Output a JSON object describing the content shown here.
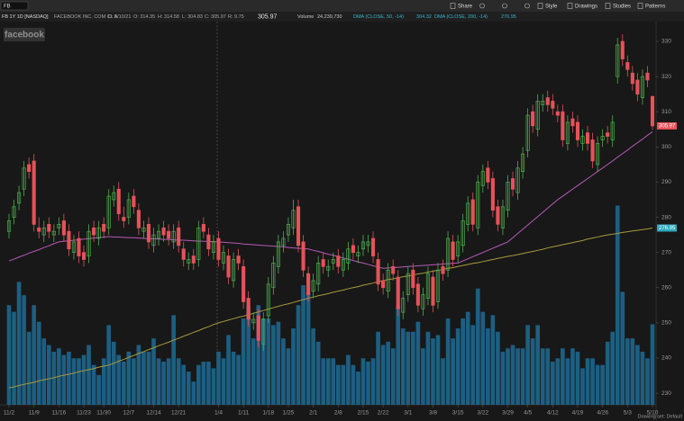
{
  "toolbar": {
    "symbol": "FB",
    "buttons": [
      "Share",
      "Style",
      "Drawings",
      "Studies",
      "Patterns"
    ]
  },
  "header": {
    "symbol_line": "FB 1Y 1D [NASDAQ]",
    "company": "FACEBOOK INC. COM CL A",
    "date": "D: 5/10/21",
    "open": "O: 314.35",
    "high": "H: 314.58",
    "low": "L: 304.83",
    "close": "C: 305.97",
    "range": "R: 9.75",
    "last": "305.97",
    "volume_label": "Volume",
    "volume_value": "24,239,730"
  },
  "watermark": "facebook",
  "footer": "Drawing set: Default",
  "chart_data": {
    "type": "candlestick",
    "up_color": "#4fae4f",
    "down_color": "#e5525a",
    "volume_color": "#1d5f82",
    "ylim": [
      226.7,
      334.6
    ],
    "yticks": [
      230,
      240,
      250,
      260,
      270,
      280,
      290,
      300,
      310,
      320,
      330
    ],
    "volume_lim": [
      0,
      65000000
    ],
    "categories": [
      "11/2",
      null,
      null,
      null,
      null,
      "11/9",
      null,
      null,
      null,
      null,
      "11/16",
      null,
      null,
      null,
      null,
      "11/23",
      null,
      null,
      null,
      "11/30",
      null,
      null,
      null,
      null,
      "12/7",
      null,
      null,
      null,
      null,
      "12/14",
      null,
      null,
      null,
      null,
      "12/21",
      null,
      null,
      null,
      null,
      null,
      null,
      null,
      "1/4",
      null,
      null,
      null,
      null,
      "1/11",
      null,
      null,
      null,
      null,
      "1/18",
      null,
      null,
      null,
      "1/25",
      null,
      null,
      null,
      null,
      "2/1",
      null,
      null,
      null,
      null,
      "2/8",
      null,
      null,
      null,
      null,
      "2/15",
      null,
      null,
      null,
      "2/22",
      null,
      null,
      null,
      null,
      "3/1",
      null,
      null,
      null,
      null,
      "3/8",
      null,
      null,
      null,
      null,
      "3/15",
      null,
      null,
      null,
      null,
      "3/22",
      null,
      null,
      null,
      null,
      "3/29",
      null,
      null,
      null,
      "4/5",
      null,
      null,
      null,
      null,
      "4/12",
      null,
      null,
      null,
      null,
      "4/19",
      null,
      null,
      null,
      null,
      "4/26",
      null,
      null,
      null,
      null,
      "5/3",
      null,
      null,
      null,
      null,
      "5/10"
    ],
    "ohlc": [
      [
        276,
        281,
        274,
        279
      ],
      [
        280,
        285,
        278,
        283
      ],
      [
        284,
        289,
        282,
        287
      ],
      [
        288,
        296,
        286,
        294
      ],
      [
        295,
        297,
        291,
        293
      ],
      [
        296,
        298,
        276,
        278
      ],
      [
        277,
        280,
        274,
        276
      ],
      [
        275,
        279,
        273,
        277
      ],
      [
        278,
        280,
        274,
        276
      ],
      [
        275,
        278,
        273,
        276
      ],
      [
        277,
        280,
        275,
        278
      ],
      [
        279,
        281,
        273,
        275
      ],
      [
        276,
        278,
        269,
        271
      ],
      [
        270,
        275,
        268,
        273
      ],
      [
        274,
        276,
        267,
        269
      ],
      [
        270,
        272,
        266,
        268
      ],
      [
        269,
        278,
        267,
        276
      ],
      [
        277,
        279,
        273,
        275
      ],
      [
        274,
        279,
        272,
        277
      ],
      [
        278,
        280,
        274,
        276
      ],
      [
        277,
        288,
        275,
        286
      ],
      [
        285,
        289,
        283,
        287
      ],
      [
        288,
        290,
        279,
        281
      ],
      [
        280,
        283,
        277,
        279
      ],
      [
        280,
        287,
        278,
        285
      ],
      [
        286,
        288,
        281,
        283
      ],
      [
        282,
        284,
        275,
        277
      ],
      [
        276,
        279,
        274,
        277
      ],
      [
        278,
        280,
        271,
        273
      ],
      [
        272,
        277,
        270,
        275
      ],
      [
        274,
        278,
        272,
        276
      ],
      [
        277,
        279,
        273,
        275
      ],
      [
        276,
        278,
        272,
        274
      ],
      [
        273,
        278,
        271,
        276
      ],
      [
        277,
        279,
        270,
        272
      ],
      [
        271,
        273,
        266,
        268
      ],
      [
        267,
        270,
        265,
        268
      ],
      [
        269,
        271,
        265,
        267
      ],
      [
        268,
        279,
        266,
        277
      ],
      [
        278,
        280,
        274,
        276
      ],
      [
        275,
        277,
        269,
        271
      ],
      [
        270,
        275,
        268,
        273
      ],
      [
        274,
        276,
        266,
        268
      ],
      [
        267,
        272,
        265,
        270
      ],
      [
        269,
        271,
        261,
        263
      ],
      [
        262,
        270,
        260,
        268
      ],
      [
        269,
        271,
        265,
        267
      ],
      [
        266,
        268,
        254,
        256
      ],
      [
        257,
        259,
        249,
        251
      ],
      [
        250,
        253,
        248,
        251
      ],
      [
        252,
        254,
        243,
        245
      ],
      [
        244,
        253,
        242,
        251
      ],
      [
        252,
        263,
        250,
        261
      ],
      [
        260,
        269,
        258,
        267
      ],
      [
        266,
        275,
        264,
        273
      ],
      [
        272,
        276,
        270,
        274
      ],
      [
        275,
        280,
        273,
        278
      ],
      [
        277,
        285,
        275,
        282
      ],
      [
        283,
        285,
        270,
        272
      ],
      [
        273,
        275,
        263,
        265
      ],
      [
        264,
        266,
        256,
        258
      ],
      [
        259,
        264,
        257,
        262
      ],
      [
        261,
        269,
        259,
        267
      ],
      [
        268,
        270,
        264,
        266
      ],
      [
        265,
        268,
        263,
        266
      ],
      [
        267,
        270,
        265,
        268
      ],
      [
        269,
        271,
        264,
        266
      ],
      [
        265,
        270,
        263,
        268
      ],
      [
        267,
        273,
        265,
        271
      ],
      [
        272,
        274,
        268,
        270
      ],
      [
        269,
        272,
        267,
        270
      ],
      [
        271,
        275,
        269,
        273
      ],
      [
        272,
        275,
        270,
        273
      ],
      [
        274,
        276,
        267,
        269
      ],
      [
        268,
        270,
        259,
        261
      ],
      [
        262,
        264,
        258,
        260
      ],
      [
        259,
        267,
        257,
        265
      ],
      [
        266,
        268,
        262,
        264
      ],
      [
        263,
        265,
        252,
        254
      ],
      [
        253,
        259,
        251,
        257
      ],
      [
        258,
        266,
        256,
        264
      ],
      [
        265,
        267,
        258,
        260
      ],
      [
        261,
        263,
        253,
        255
      ],
      [
        254,
        260,
        252,
        258
      ],
      [
        257,
        266,
        255,
        264
      ],
      [
        263,
        265,
        253,
        255
      ],
      [
        256,
        267,
        254,
        265
      ],
      [
        266,
        268,
        262,
        264
      ],
      [
        265,
        276,
        263,
        274
      ],
      [
        273,
        275,
        266,
        268
      ],
      [
        269,
        275,
        267,
        273
      ],
      [
        272,
        281,
        270,
        279
      ],
      [
        278,
        286,
        276,
        284
      ],
      [
        285,
        287,
        276,
        278
      ],
      [
        277,
        292,
        275,
        290
      ],
      [
        289,
        295,
        287,
        293
      ],
      [
        294,
        296,
        288,
        290
      ],
      [
        291,
        293,
        280,
        282
      ],
      [
        283,
        285,
        276,
        278
      ],
      [
        277,
        285,
        275,
        283
      ],
      [
        282,
        292,
        280,
        290
      ],
      [
        291,
        293,
        286,
        288
      ],
      [
        287,
        296,
        285,
        294
      ],
      [
        293,
        300,
        291,
        298
      ],
      [
        299,
        311,
        297,
        309
      ],
      [
        310,
        312,
        304,
        306
      ],
      [
        305,
        315,
        303,
        313
      ],
      [
        312,
        315,
        310,
        313
      ],
      [
        314,
        316,
        310,
        312
      ],
      [
        313,
        315,
        309,
        311
      ],
      [
        310,
        312,
        307,
        309
      ],
      [
        310,
        312,
        300,
        302
      ],
      [
        301,
        309,
        299,
        307
      ],
      [
        308,
        310,
        304,
        306
      ],
      [
        307,
        309,
        300,
        302
      ],
      [
        301,
        305,
        299,
        303
      ],
      [
        304,
        306,
        299,
        301
      ],
      [
        302,
        304,
        294,
        296
      ],
      [
        295,
        303,
        293,
        301
      ],
      [
        302,
        305,
        300,
        303
      ],
      [
        304,
        306,
        301,
        303
      ],
      [
        302,
        309,
        300,
        307
      ],
      [
        320,
        331,
        318,
        329
      ],
      [
        330,
        332,
        323,
        325
      ],
      [
        324,
        326,
        320,
        322
      ],
      [
        321,
        323,
        316,
        318
      ],
      [
        319,
        321,
        313,
        315
      ],
      [
        314,
        322,
        312,
        320
      ],
      [
        321,
        323,
        317,
        319
      ],
      [
        314.35,
        314.58,
        304.83,
        305.97
      ]
    ],
    "volume": [
      30000000.0,
      28000000.0,
      37000000.0,
      33000000.0,
      22000000.0,
      30000000.0,
      25000000.0,
      20000000.0,
      18000000.0,
      16000000.0,
      17000000.0,
      15000000.0,
      16000000.0,
      14000000.0,
      14000000.0,
      15000000.0,
      18000000.0,
      12000000.0,
      9000000.0,
      14000000.0,
      24000000.0,
      19000000.0,
      15000000.0,
      13000000.0,
      16000000.0,
      14000000.0,
      18000000.0,
      16000000.0,
      16000000.0,
      20000000.0,
      14000000.0,
      13000000.0,
      14000000.0,
      27000000.0,
      14000000.0,
      12000000.0,
      10000000.0,
      7000000.0,
      12000000.0,
      13000000.0,
      13000000.0,
      11000000.0,
      16000000.0,
      14000000.0,
      21000000.0,
      16000000.0,
      15000000.0,
      26000000.0,
      30000000.0,
      20000000.0,
      30000000.0,
      26000000.0,
      26000000.0,
      24000000.0,
      25000000.0,
      20000000.0,
      17000000.0,
      23000000.0,
      30000000.0,
      36000000.0,
      34000000.0,
      23000000.0,
      19000000.0,
      14000000.0,
      14000000.0,
      14000000.0,
      12000000.0,
      12000000.0,
      15000000.0,
      12000000.0,
      10000000.0,
      14000000.0,
      13000000.0,
      14000000.0,
      22000000.0,
      18000000.0,
      19000000.0,
      17000000.0,
      30000000.0,
      23000000.0,
      22000000.0,
      22000000.0,
      25000000.0,
      17000000.0,
      22000000.0,
      20000000.0,
      21000000.0,
      14000000.0,
      26000000.0,
      20000000.0,
      23000000.0,
      26000000.0,
      28000000.0,
      24000000.0,
      35000000.0,
      28000000.0,
      23000000.0,
      27000000.0,
      22000000.0,
      16000000.0,
      17000000.0,
      18000000.0,
      17000000.0,
      17000000.0,
      24000000.0,
      20000000.0,
      24000000.0,
      17000000.0,
      17000000.0,
      13000000.0,
      14000000.0,
      17000000.0,
      14000000.0,
      17000000.0,
      16000000.0,
      11000000.0,
      14000000.0,
      14000000.0,
      12000000.0,
      12000000.0,
      19000000.0,
      22000000.0,
      60000000.0,
      34000000.0,
      20000000.0,
      20000000.0,
      18000000.0,
      16000000.0,
      14000000.0,
      24239730
    ],
    "studies": [
      {
        "name": "DMA (CLOSE, 50, -14)",
        "last_label": "304.32",
        "color": "#b55ab8",
        "values": [
          267.6,
          268.1,
          268.7,
          269.2,
          269.8,
          270.3,
          270.8,
          271.4,
          271.9,
          272.5,
          273.0,
          273.2,
          273.3,
          273.5,
          273.6,
          273.8,
          273.9,
          274.1,
          274.2,
          274.4,
          274.5,
          274.4,
          274.4,
          274.3,
          274.2,
          274.2,
          274.1,
          274.0,
          273.9,
          273.9,
          273.8,
          273.7,
          273.7,
          273.6,
          273.5,
          273.5,
          273.4,
          273.3,
          273.2,
          273.2,
          273.1,
          273.1,
          273.0,
          272.9,
          272.8,
          272.7,
          272.6,
          272.4,
          272.3,
          272.2,
          272.1,
          272.0,
          271.9,
          271.8,
          271.7,
          271.6,
          271.4,
          271.3,
          271.2,
          271.1,
          271.0,
          270.6,
          270.3,
          269.9,
          269.5,
          269.2,
          268.8,
          268.4,
          268.1,
          267.7,
          267.3,
          267.0,
          266.6,
          266.2,
          265.9,
          265.5,
          265.6,
          265.7,
          265.8,
          265.9,
          266.0,
          266.1,
          266.2,
          266.3,
          266.4,
          266.5,
          266.6,
          266.7,
          266.8,
          266.9,
          267.0,
          267.6,
          268.2,
          268.8,
          269.4,
          270.0,
          270.6,
          271.2,
          271.8,
          272.4,
          273.0,
          274.2,
          275.4,
          276.6,
          277.8,
          279.0,
          280.2,
          281.4,
          282.6,
          283.8,
          285.0,
          286,
          287,
          288,
          289,
          290,
          291,
          292,
          293,
          294,
          295,
          296.0,
          297.1,
          298.1,
          299.1,
          300.2,
          301.2,
          302.2,
          303.3,
          304.32
        ]
      },
      {
        "name": "DMA (CLOSE, 200, -14)",
        "last_label": "276.95",
        "color": "#a69a3e",
        "values": [
          231.5,
          231.8,
          232.2,
          232.5,
          232.8,
          233.1,
          233.5,
          233.8,
          234.1,
          234.4,
          234.8,
          235.1,
          235.4,
          235.7,
          236.1,
          236.4,
          236.7,
          237.0,
          237.4,
          237.7,
          238.0,
          238.5,
          239.1,
          239.6,
          240.2,
          240.7,
          241.3,
          241.8,
          242.4,
          242.9,
          243.5,
          244.0,
          244.5,
          245.1,
          245.6,
          246.2,
          246.7,
          247.3,
          247.8,
          248.4,
          248.9,
          249.5,
          250.0,
          250.4,
          250.8,
          251.2,
          251.6,
          251.9,
          252.3,
          252.7,
          253.1,
          253.5,
          253.9,
          254.3,
          254.7,
          255.1,
          255.4,
          255.8,
          256.2,
          256.6,
          257.0,
          257.3,
          257.7,
          258.0,
          258.3,
          258.7,
          259.0,
          259.3,
          259.7,
          260.0,
          260.3,
          260.7,
          261.0,
          261.3,
          261.7,
          262.0,
          262.3,
          262.5,
          262.8,
          263.1,
          263.3,
          263.6,
          263.9,
          264.1,
          264.4,
          264.7,
          264.9,
          265.2,
          265.5,
          265.7,
          266.0,
          266.3,
          266.6,
          266.9,
          267.1,
          267.4,
          267.7,
          268.0,
          268.3,
          268.6,
          268.9,
          269.1,
          269.4,
          269.7,
          270.0,
          270.3,
          270.6,
          270.9,
          271.3,
          271.6,
          271.9,
          272.2,
          272.5,
          272.8,
          273.1,
          273.4,
          273.8,
          274.1,
          274.4,
          274.7,
          275.0,
          275.2,
          275.4,
          275.7,
          275.9,
          276.1,
          276.3,
          276.5,
          276.7,
          276.95
        ]
      }
    ]
  }
}
